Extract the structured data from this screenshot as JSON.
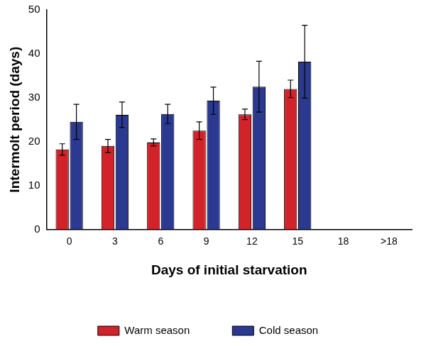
{
  "chart_data": {
    "type": "bar",
    "x_label": "Days of initial starvation",
    "y_label": "Intermolt period (days)",
    "categories": [
      "0",
      "3",
      "6",
      "9",
      "12",
      "15",
      "18",
      ">18"
    ],
    "series": [
      {
        "name": "Warm season",
        "color": "#d2232a",
        "values": [
          18.2,
          19.0,
          19.8,
          22.5,
          26.2,
          32.0,
          null,
          null
        ],
        "errors": [
          1.3,
          1.5,
          0.8,
          2.0,
          1.2,
          2.0,
          null,
          null
        ]
      },
      {
        "name": "Cold season",
        "color": "#2b3990",
        "values": [
          24.5,
          26.1,
          26.3,
          29.3,
          32.5,
          38.2,
          null,
          null
        ],
        "errors": [
          4.0,
          2.9,
          2.2,
          3.1,
          5.8,
          8.3,
          null,
          null
        ]
      }
    ],
    "ylim": [
      0,
      50
    ],
    "yticks": [
      0,
      10,
      20,
      30,
      40,
      50
    ],
    "grid": false,
    "legend": "bottom"
  }
}
